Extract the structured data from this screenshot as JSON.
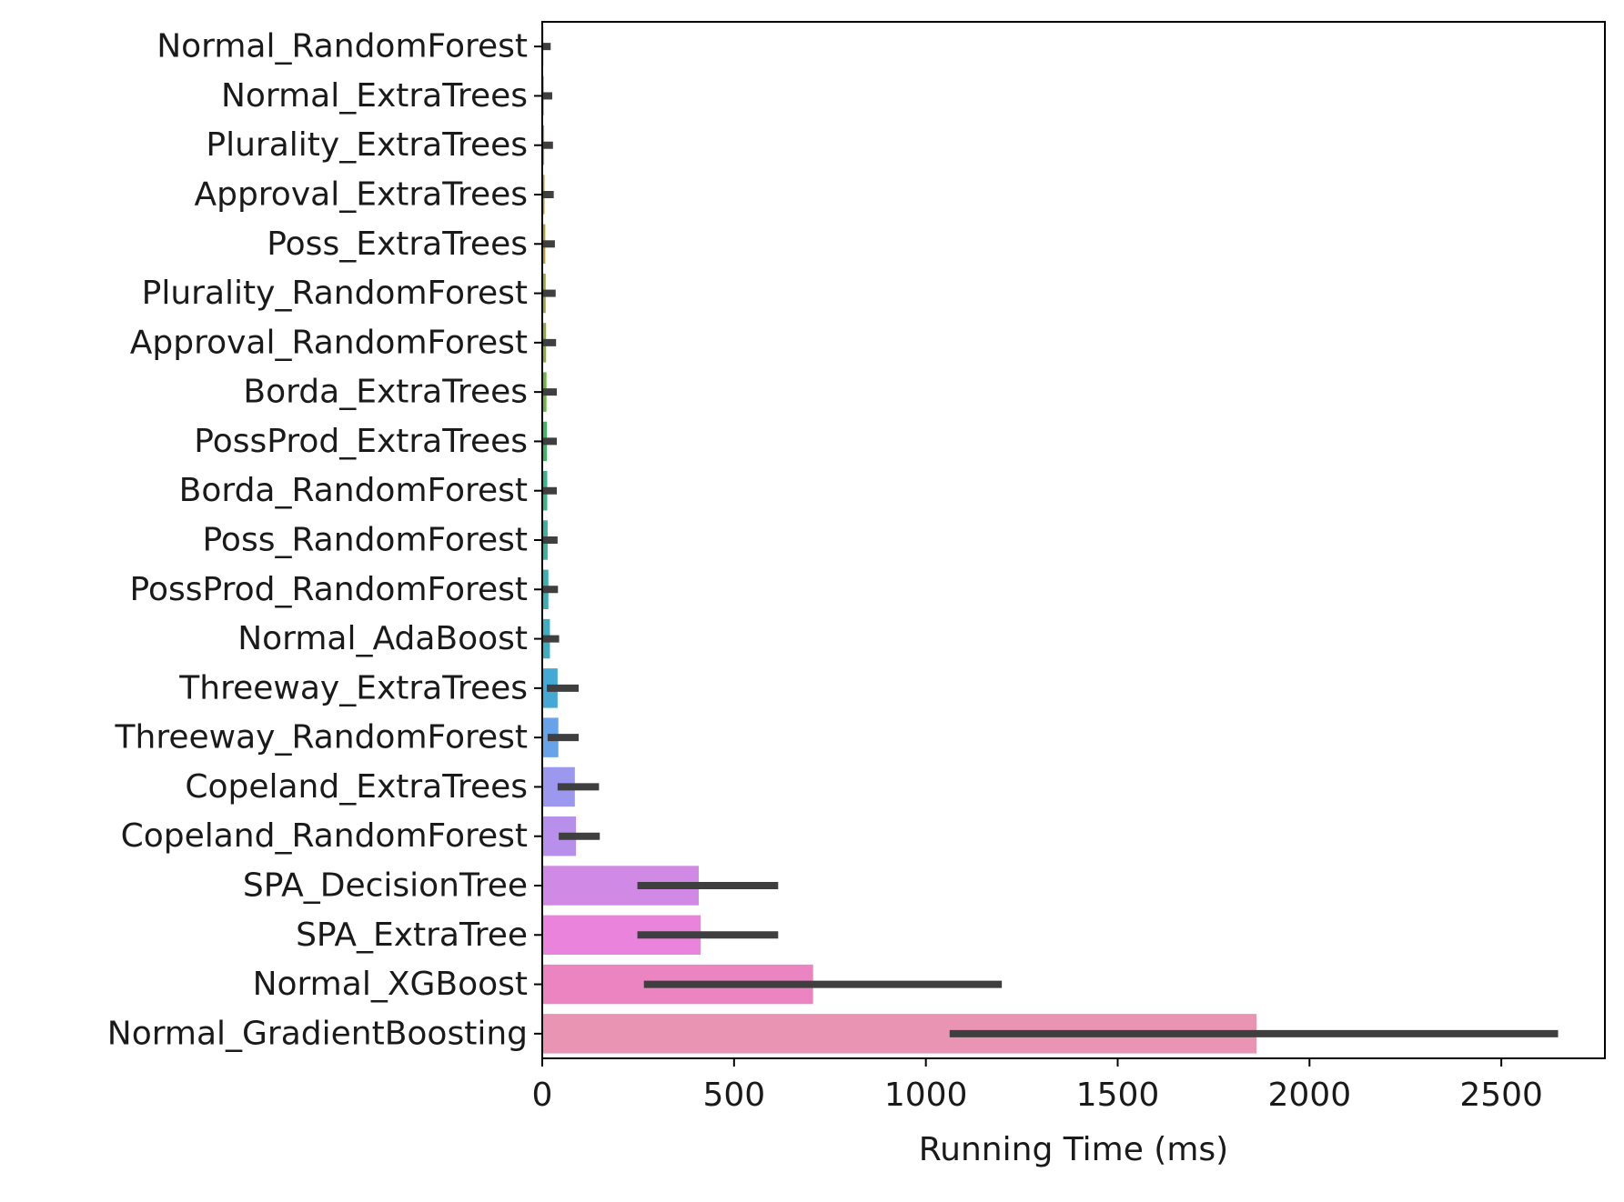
{
  "chart_data": {
    "type": "bar",
    "orientation": "horizontal",
    "title": "",
    "xlabel": "Running Time (ms)",
    "ylabel": "",
    "xlim": [
      0,
      2770
    ],
    "xticks": [
      0,
      500,
      1000,
      1500,
      2000,
      2500
    ],
    "grid": false,
    "legend": "none",
    "categories": [
      "Normal_RandomForest",
      "Normal_ExtraTrees",
      "Plurality_ExtraTrees",
      "Approval_ExtraTrees",
      "Poss_ExtraTrees",
      "Plurality_RandomForest",
      "Approval_RandomForest",
      "Borda_ExtraTrees",
      "PossProd_ExtraTrees",
      "Borda_RandomForest",
      "Poss_RandomForest",
      "PossProd_RandomForest",
      "Normal_AdaBoost",
      "Threeway_ExtraTrees",
      "Threeway_RandomForest",
      "Copeland_ExtraTrees",
      "Copeland_RandomForest",
      "SPA_DecisionTree",
      "SPA_ExtraTree",
      "Normal_XGBoost",
      "Normal_GradientBoosting"
    ],
    "values": [
      3,
      4,
      5,
      6,
      8,
      9,
      10,
      11,
      12,
      13,
      14,
      16,
      20,
      40,
      42,
      85,
      88,
      408,
      413,
      706,
      1862
    ],
    "error_low": [
      0,
      0,
      0,
      0,
      0,
      0,
      0,
      0,
      0,
      0,
      0,
      0,
      0,
      12,
      14,
      40,
      43,
      248,
      248,
      265,
      1062
    ],
    "error_high": [
      22,
      26,
      28,
      30,
      33,
      35,
      36,
      38,
      38,
      38,
      40,
      41,
      44,
      95,
      95,
      148,
      150,
      615,
      615,
      1198,
      2648
    ],
    "colors": [
      "#e8836f",
      "#e48a55",
      "#d6923f",
      "#c89a32",
      "#b8a031",
      "#a5a734",
      "#8fad3b",
      "#6db443",
      "#3cb865",
      "#3bb488",
      "#3cb19e",
      "#3cafaf",
      "#3fadc2",
      "#45a8d7",
      "#68a2e9",
      "#9b98ee",
      "#b98fec",
      "#d08ae6",
      "#e983dc",
      "#eb84c0",
      "#e994b2"
    ],
    "error_color": "#3f3f3f"
  }
}
